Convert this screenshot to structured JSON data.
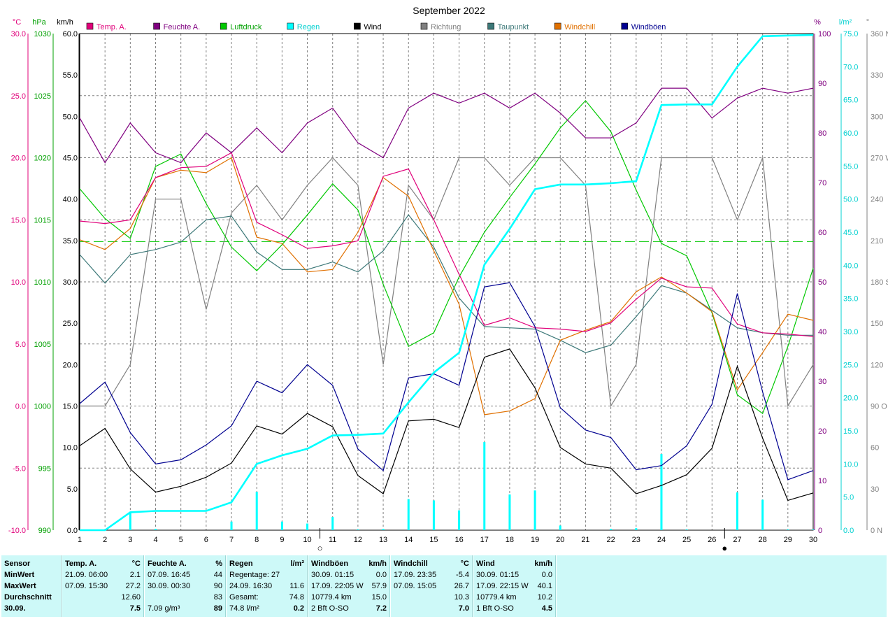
{
  "title": "September 2022",
  "legend": [
    {
      "label": "Temp. A.",
      "color": "#e0007a",
      "text_color": "#e0007a"
    },
    {
      "label": "Feuchte A.",
      "color": "#800080",
      "text_color": "#800080"
    },
    {
      "label": "Luftdruck",
      "color": "#00c800",
      "text_color": "#00a000"
    },
    {
      "label": "Regen",
      "color": "#00ffff",
      "text_color": "#00d0d0"
    },
    {
      "label": "Wind",
      "color": "#000000",
      "text_color": "#000000"
    },
    {
      "label": "Richtung",
      "color": "#808080",
      "text_color": "#808080"
    },
    {
      "label": "Taupunkt",
      "color": "#3c7878",
      "text_color": "#3c7878"
    },
    {
      "label": "Windchill",
      "color": "#e07000",
      "text_color": "#e07000"
    },
    {
      "label": "Windböen",
      "color": "#000090",
      "text_color": "#000090"
    }
  ],
  "axes": {
    "temp": {
      "unit": "°C",
      "color": "#e0007a",
      "ticks": [
        "30.0",
        "25.0",
        "20.0",
        "15.0",
        "10.0",
        "5.0",
        "0.0",
        "-5.0",
        "-10.0"
      ]
    },
    "pressure": {
      "unit": "hPa",
      "color": "#00a000",
      "ticks": [
        "1030",
        "1025",
        "1020",
        "1015",
        "1010",
        "1005",
        "1000",
        "995",
        "990"
      ]
    },
    "wind": {
      "unit": "km/h",
      "color": "#000000",
      "ticks": [
        "60.0",
        "55.0",
        "50.0",
        "45.0",
        "40.0",
        "35.0",
        "30.0",
        "25.0",
        "20.0",
        "15.0",
        "10.0",
        "5.0",
        "0.0"
      ]
    },
    "humidity": {
      "unit": "%",
      "color": "#800080",
      "ticks": [
        "100",
        "90",
        "80",
        "70",
        "60",
        "50",
        "40",
        "30",
        "20",
        "10",
        "0"
      ]
    },
    "rain": {
      "unit": "l/m²",
      "color": "#00d0d0",
      "ticks": [
        "75.0",
        "70.0",
        "65.0",
        "60.0",
        "55.0",
        "50.0",
        "45.0",
        "40.0",
        "35.0",
        "30.0",
        "25.0",
        "20.0",
        "15.0",
        "10.0",
        "5.0",
        "0.0"
      ]
    },
    "direction": {
      "unit": "°",
      "color": "#808080",
      "ticks": [
        "360 N",
        "330",
        "300",
        "270 W",
        "240",
        "210",
        "180 S",
        "150",
        "120",
        "90 O",
        "60",
        "30",
        "0 N"
      ]
    }
  },
  "x_ticks": [
    "1",
    "2",
    "3",
    "4",
    "5",
    "6",
    "7",
    "8",
    "9",
    "10",
    "11",
    "12",
    "13",
    "14",
    "15",
    "16",
    "17",
    "18",
    "19",
    "20",
    "21",
    "22",
    "23",
    "24",
    "25",
    "26",
    "27",
    "28",
    "29",
    "30"
  ],
  "chart_data": {
    "type": "line",
    "x": [
      1,
      2,
      3,
      4,
      5,
      6,
      7,
      8,
      9,
      10,
      11,
      12,
      13,
      14,
      15,
      16,
      17,
      18,
      19,
      20,
      21,
      22,
      23,
      24,
      25,
      26,
      27,
      28,
      29,
      30
    ],
    "ylim_temp": [
      -10,
      30
    ],
    "ylim_pressure": [
      990,
      1030
    ],
    "ylim_wind": [
      0,
      60
    ],
    "ylim_humidity": [
      0,
      100
    ],
    "ylim_rain": [
      0,
      75
    ],
    "ylim_direction": [
      0,
      360
    ],
    "reference_line_pressure": 1013.25,
    "series": [
      {
        "name": "Temp. A.",
        "axis": "temp",
        "color": "#e0007a",
        "values": [
          14.9,
          14.7,
          15.0,
          18.4,
          19.2,
          19.3,
          20.4,
          14.8,
          13.8,
          12.7,
          12.9,
          13.3,
          18.5,
          19.1,
          15.0,
          10.6,
          6.5,
          7.1,
          6.3,
          6.2,
          6.0,
          6.7,
          8.6,
          10.3,
          9.6,
          9.5,
          6.6,
          5.9,
          5.8,
          5.6
        ]
      },
      {
        "name": "Feuchte A.",
        "axis": "humidity",
        "color": "#800080",
        "values": [
          83,
          74,
          82,
          76,
          74,
          80,
          76,
          81,
          76,
          82,
          85,
          78,
          75,
          85,
          88,
          86,
          88,
          85,
          88,
          84,
          79,
          79,
          82,
          89,
          89,
          83,
          87,
          89,
          88,
          89
        ]
      },
      {
        "name": "Luftdruck",
        "axis": "pressure",
        "color": "#00c800",
        "values": [
          1017.5,
          1015.1,
          1013.5,
          1019.3,
          1020.3,
          1016.3,
          1012.8,
          1010.9,
          1013.0,
          1015.4,
          1017.9,
          1015.8,
          1009.8,
          1004.8,
          1005.9,
          1010.4,
          1014.0,
          1016.8,
          1019.5,
          1022.4,
          1024.6,
          1022.1,
          1017.4,
          1013.1,
          1012.1,
          1007.5,
          1000.9,
          999.4,
          1004.8,
          1011.1
        ]
      },
      {
        "name": "Windchill",
        "axis": "temp",
        "color": "#e07000",
        "values": [
          13.4,
          12.6,
          14.3,
          18.4,
          19.0,
          18.8,
          20.0,
          13.6,
          13.1,
          10.8,
          11.0,
          14.0,
          18.4,
          16.9,
          12.5,
          8.2,
          -0.7,
          -0.4,
          0.6,
          5.3,
          6.1,
          6.8,
          9.2,
          10.4,
          9.1,
          7.6,
          1.3,
          4.3,
          7.4,
          6.9
        ]
      },
      {
        "name": "Taupunkt",
        "axis": "temp",
        "color": "#3c7878",
        "values": [
          12.2,
          9.9,
          12.2,
          12.6,
          13.2,
          15.0,
          15.3,
          12.4,
          11.0,
          11.0,
          11.6,
          10.8,
          12.5,
          15.4,
          12.8,
          8.7,
          6.4,
          6.3,
          6.2,
          5.3,
          4.3,
          4.9,
          7.2,
          9.7,
          9.1,
          7.7,
          6.3,
          5.9,
          5.7,
          5.7
        ]
      },
      {
        "name": "Wind",
        "axis": "wind",
        "color": "#000000",
        "values": [
          10.2,
          12.3,
          7.4,
          4.6,
          5.3,
          6.4,
          8.1,
          12.6,
          11.6,
          14.1,
          12.5,
          6.6,
          4.4,
          13.2,
          13.4,
          12.4,
          20.9,
          21.9,
          17.2,
          10.0,
          8.0,
          7.5,
          4.4,
          5.4,
          6.7,
          9.9,
          19.8,
          11.1,
          3.6,
          4.5
        ]
      },
      {
        "name": "Windböen",
        "axis": "wind",
        "color": "#000090",
        "values": [
          15.3,
          17.9,
          11.8,
          8.0,
          8.5,
          10.3,
          12.6,
          18.0,
          16.6,
          20.0,
          17.5,
          9.8,
          7.2,
          18.4,
          18.9,
          17.5,
          29.4,
          29.9,
          24.6,
          14.8,
          12.1,
          11.2,
          7.3,
          7.8,
          10.2,
          15.2,
          28.6,
          16.7,
          6.1,
          7.2
        ]
      },
      {
        "name": "Richtung",
        "axis": "direction",
        "color": "#808080",
        "values": [
          90,
          90,
          120,
          240,
          240,
          160,
          230,
          250,
          225,
          250,
          270,
          250,
          120,
          250,
          225,
          270,
          270,
          250,
          270,
          270,
          250,
          90,
          120,
          270,
          270,
          270,
          225,
          270,
          90,
          120
        ]
      },
      {
        "name": "Regen",
        "axis": "rain",
        "color": "#00ffff",
        "kind": "cumulative",
        "values": [
          0.0,
          0.0,
          2.7,
          2.9,
          2.9,
          2.9,
          4.2,
          10.0,
          11.3,
          12.3,
          14.3,
          14.4,
          14.6,
          19.3,
          23.8,
          26.8,
          40.1,
          45.5,
          51.5,
          52.2,
          52.2,
          52.4,
          52.7,
          64.2,
          64.3,
          64.3,
          70.0,
          74.6,
          74.7,
          74.8
        ]
      },
      {
        "name": "Regen",
        "axis": "rain",
        "color": "#00ffff",
        "kind": "daily",
        "values": [
          0.0,
          0.0,
          2.7,
          0.2,
          0.0,
          0.0,
          1.3,
          5.8,
          1.3,
          1.0,
          2.0,
          0.1,
          0.2,
          4.7,
          4.5,
          3.0,
          13.3,
          5.4,
          6.0,
          0.7,
          0.0,
          0.2,
          0.3,
          11.5,
          0.1,
          0.0,
          5.7,
          4.6,
          0.1,
          0.1
        ]
      }
    ]
  },
  "moon_markers": [
    {
      "day": 10,
      "symbol": "○"
    },
    {
      "day": 26,
      "symbol": "●"
    }
  ],
  "stats": {
    "sensor": {
      "title": "Sensor",
      "rows": [
        "MinWert",
        "MaxWert",
        "Durchschnitt",
        "30.09."
      ]
    },
    "temp": {
      "title": "Temp. A.",
      "unit": "°C",
      "rows": [
        [
          "21.09.  06:00",
          "2.1"
        ],
        [
          "07.09.  15:30",
          "27.2"
        ],
        [
          "",
          "12.60"
        ],
        [
          "",
          "7.5"
        ]
      ]
    },
    "feuchte": {
      "title": "Feuchte A.",
      "unit": "%",
      "rows": [
        [
          "07.09.  16:45",
          "44"
        ],
        [
          "30.09.  00:30",
          "90"
        ],
        [
          "",
          "83"
        ],
        [
          "7.09 g/m³",
          "89"
        ]
      ]
    },
    "regen": {
      "title": "Regen",
      "unit": "l/m²",
      "rows": [
        [
          "Regentage: 27",
          ""
        ],
        [
          "24.09.  16:30",
          "11.6"
        ],
        [
          "Gesamt:",
          "74.8"
        ],
        [
          "74.8 l/m²",
          "0.2"
        ]
      ]
    },
    "windboeen": {
      "title": "Windböen",
      "unit": "km/h",
      "rows": [
        [
          "30.09.  01:15",
          "0.0"
        ],
        [
          "17.09.  22:05  W",
          "57.9"
        ],
        [
          "10779.4 km",
          "15.0"
        ],
        [
          "2 Bft O-SO",
          "7.2"
        ]
      ]
    },
    "windchill": {
      "title": "Windchill",
      "unit": "°C",
      "rows": [
        [
          "17.09.  23:35",
          "-5.4"
        ],
        [
          "07.09.  15:05",
          "26.7"
        ],
        [
          "",
          "10.3"
        ],
        [
          "",
          "7.0"
        ]
      ]
    },
    "wind": {
      "title": "Wind",
      "unit": "km/h",
      "rows": [
        [
          "30.09.  01:15",
          "0.0"
        ],
        [
          "17.09.  22:15  W",
          "40.1"
        ],
        [
          "10779.4 km",
          "10.2"
        ],
        [
          "1 Bft O-SO",
          "4.5"
        ]
      ]
    }
  }
}
